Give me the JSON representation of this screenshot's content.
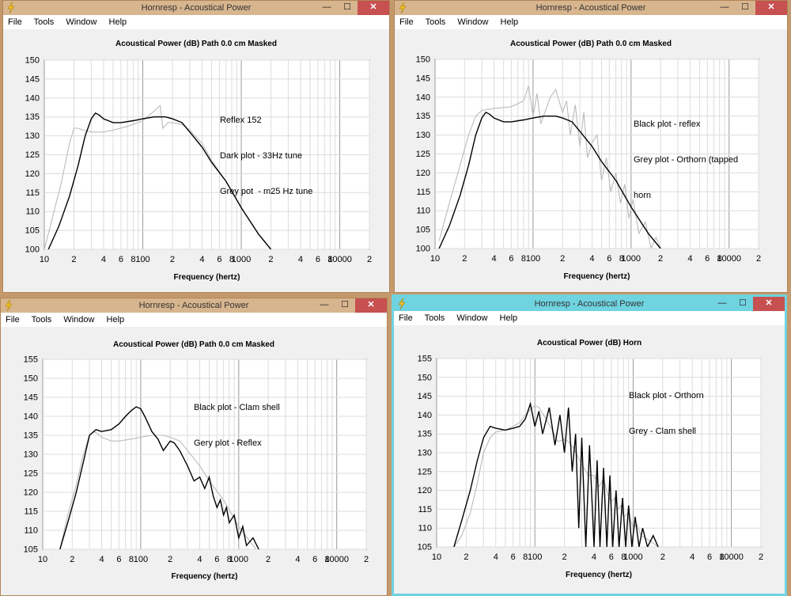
{
  "windows": [
    {
      "title": "Hornresp - Acoustical Power",
      "menu": [
        "File",
        "Tools",
        "Window",
        "Help"
      ],
      "chart_title": "Acoustical Power (dB)   Path 0.0 cm   Masked",
      "annotation": [
        "Reflex 152",
        "Dark plot - 33Hz tune",
        "Grey pot  - m25 Hz tune"
      ],
      "xlabel": "Frequency (hertz)"
    },
    {
      "title": "Hornresp - Acoustical Power",
      "menu": [
        "File",
        "Tools",
        "Window",
        "Help"
      ],
      "chart_title": "Acoustical Power (dB)   Path 0.0 cm   Masked",
      "annotation": [
        "Black plot - reflex",
        "Grey plot - Orthorn (tapped",
        "horn"
      ],
      "xlabel": "Frequency (hertz)"
    },
    {
      "title": "Hornresp - Acoustical Power",
      "menu": [
        "File",
        "Tools",
        "Window",
        "Help"
      ],
      "chart_title": "Acoustical Power (dB)   Path 0.0 cm   Masked",
      "annotation": [
        "Black plot - Clam shell",
        "Gery plot - Reflex"
      ],
      "xlabel": "Frequency (hertz)"
    },
    {
      "title": "Hornresp - Acoustical Power",
      "menu": [
        "File",
        "Tools",
        "Window",
        "Help"
      ],
      "chart_title": "Acoustical Power (dB)   Horn",
      "annotation": [
        "Black plot - Orthorn",
        "Grey - Clam shell"
      ],
      "xlabel": "Frequency (hertz)"
    }
  ],
  "window_controls": {
    "minimize": "—",
    "maximize": "☐",
    "close": "✕"
  },
  "chart_data": [
    {
      "type": "line",
      "title": "Acoustical Power (dB)   Path 0.0 cm   Masked",
      "xlabel": "Frequency (hertz)",
      "x_scale": "log",
      "xlim": [
        10,
        20000
      ],
      "ylim": [
        100,
        150
      ],
      "x_ticks": [
        "10",
        "2",
        "4",
        "6",
        "8",
        "100",
        "2",
        "4",
        "6",
        "8",
        "1000",
        "2",
        "4",
        "6",
        "8",
        "10000",
        "2"
      ],
      "y_ticks": [
        100,
        105,
        110,
        115,
        120,
        125,
        130,
        135,
        140,
        145,
        150
      ],
      "series": [
        {
          "color": "#000000",
          "x": [
            11,
            14,
            18,
            22,
            26,
            30,
            33,
            36,
            40,
            50,
            60,
            80,
            100,
            130,
            170,
            200,
            250,
            300,
            400,
            500,
            700,
            1000,
            1500,
            2000
          ],
          "y": [
            100,
            106,
            114,
            122,
            130,
            134.5,
            136,
            135.5,
            134.5,
            133.5,
            133.5,
            134,
            134.5,
            135,
            135,
            134.5,
            133.5,
            131,
            127,
            123,
            118,
            111,
            104,
            100
          ]
        },
        {
          "color": "#bbbbbb",
          "x": [
            10,
            12,
            15,
            18,
            20,
            22,
            25,
            30,
            40,
            50,
            70,
            100,
            130,
            150,
            160,
            180,
            200,
            250,
            300,
            400,
            500,
            700,
            1000,
            1500,
            2000
          ],
          "y": [
            100,
            108,
            118,
            128,
            132,
            132,
            131.5,
            131,
            131,
            131.5,
            132.5,
            134,
            136.5,
            138,
            132,
            133.5,
            133.5,
            133,
            131.5,
            128,
            123.5,
            118,
            111,
            104,
            100
          ]
        }
      ]
    },
    {
      "type": "line",
      "title": "Acoustical Power (dB)   Path 0.0 cm   Masked",
      "xlabel": "Frequency (hertz)",
      "x_scale": "log",
      "xlim": [
        10,
        20000
      ],
      "ylim": [
        100,
        150
      ],
      "x_ticks": [
        "10",
        "2",
        "4",
        "6",
        "8",
        "100",
        "2",
        "4",
        "6",
        "8",
        "1000",
        "2",
        "4",
        "6",
        "8",
        "10000",
        "2"
      ],
      "y_ticks": [
        100,
        105,
        110,
        115,
        120,
        125,
        130,
        135,
        140,
        145,
        150
      ],
      "series": [
        {
          "color": "#000000",
          "x": [
            11,
            14,
            18,
            22,
            26,
            30,
            33,
            36,
            40,
            50,
            60,
            80,
            100,
            130,
            170,
            200,
            250,
            300,
            400,
            500,
            700,
            1000,
            1500,
            2000
          ],
          "y": [
            100,
            106,
            114,
            122,
            130,
            134.5,
            136,
            135.5,
            134.5,
            133.5,
            133.5,
            134,
            134.5,
            135,
            135,
            134.5,
            133.5,
            131,
            127,
            123,
            118,
            111,
            104,
            100
          ]
        },
        {
          "color": "#bbbbbb",
          "x": [
            11,
            14,
            18,
            22,
            26,
            30,
            40,
            60,
            80,
            90,
            100,
            110,
            120,
            150,
            170,
            200,
            220,
            240,
            270,
            300,
            330,
            360,
            400,
            450,
            500,
            560,
            620,
            700,
            780,
            860,
            950,
            1050,
            1200,
            1400,
            1600,
            1800,
            2000
          ],
          "y": [
            102,
            112,
            122,
            130,
            135,
            136.5,
            137,
            137.5,
            139,
            143,
            135,
            141,
            133,
            140,
            142,
            136,
            139,
            130,
            138,
            127,
            136,
            124,
            128,
            130,
            118,
            124,
            115,
            120,
            112,
            117,
            108,
            113,
            104,
            107,
            100,
            103,
            100
          ]
        }
      ]
    },
    {
      "type": "line",
      "title": "Acoustical Power (dB)   Path 0.0 cm   Masked",
      "xlabel": "Frequency (hertz)",
      "x_scale": "log",
      "xlim": [
        10,
        20000
      ],
      "ylim": [
        105,
        155
      ],
      "x_ticks": [
        "10",
        "2",
        "4",
        "6",
        "8",
        "100",
        "2",
        "4",
        "6",
        "8",
        "1000",
        "2",
        "4",
        "6",
        "8",
        "10000",
        "2"
      ],
      "y_ticks": [
        105,
        110,
        115,
        120,
        125,
        130,
        135,
        140,
        145,
        150,
        155
      ],
      "series": [
        {
          "color": "#000000",
          "x": [
            15,
            18,
            22,
            26,
            30,
            35,
            40,
            50,
            60,
            70,
            80,
            90,
            100,
            110,
            130,
            150,
            170,
            200,
            220,
            250,
            300,
            350,
            400,
            450,
            500,
            550,
            600,
            650,
            700,
            750,
            800,
            900,
            1000,
            1100,
            1200,
            1400,
            1600
          ],
          "y": [
            105,
            112,
            120,
            128,
            135,
            136.5,
            136,
            136.5,
            138,
            140,
            141.5,
            142.5,
            142,
            140,
            136,
            134,
            131,
            133.5,
            133,
            131,
            127,
            123,
            124,
            121,
            124,
            119,
            116,
            118,
            114,
            116,
            112,
            114,
            108,
            111,
            106,
            108,
            105
          ]
        },
        {
          "color": "#bbbbbb",
          "x": [
            15,
            18,
            22,
            26,
            30,
            33,
            36,
            40,
            50,
            60,
            80,
            100,
            130,
            170,
            200,
            250,
            300,
            400,
            500,
            700,
            1000,
            1500
          ],
          "y": [
            105,
            114,
            122,
            130,
            135,
            136,
            135.5,
            134.5,
            133.5,
            133.5,
            134,
            134.5,
            135,
            135,
            134.5,
            133.5,
            131,
            127,
            123,
            118,
            111,
            105
          ]
        }
      ]
    },
    {
      "type": "line",
      "title": "Acoustical Power (dB)   Horn",
      "xlabel": "Frequency (hertz)",
      "x_scale": "log",
      "xlim": [
        10,
        20000
      ],
      "ylim": [
        105,
        155
      ],
      "x_ticks": [
        "10",
        "2",
        "4",
        "6",
        "8",
        "100",
        "2",
        "4",
        "6",
        "8",
        "1000",
        "2",
        "4",
        "6",
        "8",
        "10000",
        "2"
      ],
      "y_ticks": [
        105,
        110,
        115,
        120,
        125,
        130,
        135,
        140,
        145,
        150,
        155
      ],
      "series": [
        {
          "color": "#000000",
          "x": [
            15,
            18,
            22,
            26,
            30,
            35,
            40,
            50,
            60,
            70,
            80,
            90,
            100,
            110,
            120,
            140,
            160,
            180,
            200,
            220,
            240,
            260,
            280,
            300,
            330,
            360,
            400,
            430,
            460,
            500,
            540,
            580,
            620,
            670,
            720,
            780,
            840,
            900,
            970,
            1050,
            1150,
            1250,
            1400,
            1600,
            1800
          ],
          "y": [
            105,
            112,
            120,
            128,
            134,
            137,
            136.5,
            136,
            136.5,
            137,
            139,
            143,
            137,
            141,
            135,
            142,
            132,
            140,
            130,
            142,
            125,
            135,
            110,
            134,
            105,
            132,
            105,
            128,
            105,
            126,
            105,
            124,
            105,
            120,
            105,
            118,
            105,
            116,
            105,
            113,
            105,
            110,
            105,
            108,
            105
          ]
        },
        {
          "color": "#bbbbbb",
          "x": [
            15,
            18,
            22,
            26,
            30,
            35,
            40,
            50,
            60,
            70,
            80,
            90,
            100,
            110,
            130,
            150,
            170,
            200,
            220,
            250,
            300,
            350,
            400,
            450,
            500,
            550,
            600,
            650,
            700,
            750,
            800,
            900,
            1000,
            1100,
            1200,
            1400,
            1600,
            1800
          ],
          "y": [
            105,
            108,
            114,
            122,
            130,
            134,
            135.5,
            136,
            137,
            138,
            140,
            141.5,
            142.5,
            142,
            139,
            136,
            133,
            133.5,
            133,
            131,
            127,
            124,
            124,
            121,
            123,
            119,
            117,
            118,
            115,
            116,
            113,
            114,
            110,
            111,
            108,
            107,
            106,
            105
          ]
        }
      ]
    }
  ]
}
